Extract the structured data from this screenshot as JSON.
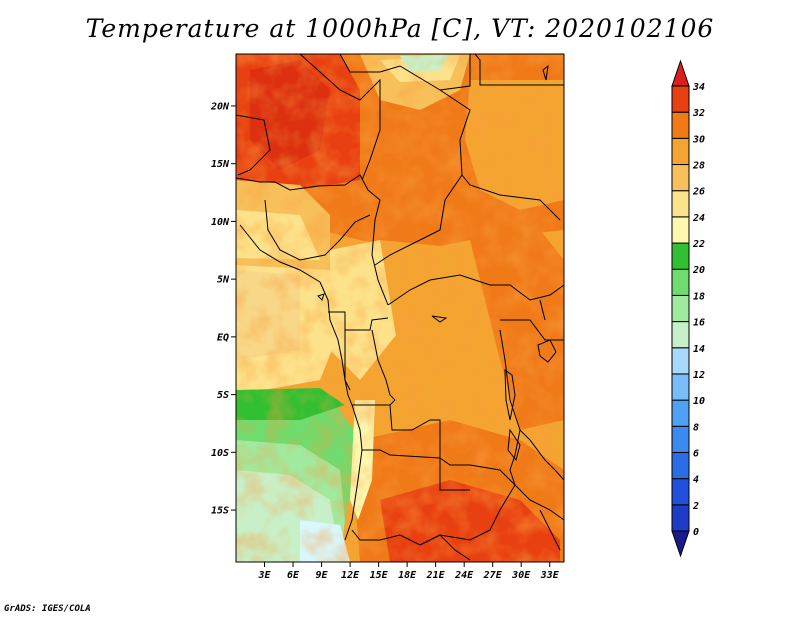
{
  "title": "Temperature at 1000hPa [C], VT: 2020102106",
  "credit": "GrADS: IGES/COLA",
  "map": {
    "lat_range": [
      -19.5,
      24.5
    ],
    "lon_range": [
      0,
      34.5
    ],
    "lat_ticks": [
      {
        "value": 20,
        "label": "20N"
      },
      {
        "value": 15,
        "label": "15N"
      },
      {
        "value": 10,
        "label": "10N"
      },
      {
        "value": 5,
        "label": "5N"
      },
      {
        "value": 0,
        "label": "EQ"
      },
      {
        "value": -5,
        "label": "5S"
      },
      {
        "value": -10,
        "label": "10S"
      },
      {
        "value": -15,
        "label": "15S"
      }
    ],
    "lon_ticks": [
      {
        "value": 3,
        "label": "3E"
      },
      {
        "value": 6,
        "label": "6E"
      },
      {
        "value": 9,
        "label": "9E"
      },
      {
        "value": 12,
        "label": "12E"
      },
      {
        "value": 15,
        "label": "15E"
      },
      {
        "value": 18,
        "label": "18E"
      },
      {
        "value": 21,
        "label": "21E"
      },
      {
        "value": 24,
        "label": "24E"
      },
      {
        "value": 27,
        "label": "27E"
      },
      {
        "value": 30,
        "label": "30E"
      },
      {
        "value": 33,
        "label": "33E"
      }
    ]
  },
  "colorbar": {
    "levels": [
      "0",
      "2",
      "4",
      "6",
      "8",
      "10",
      "12",
      "14",
      "16",
      "18",
      "20",
      "22",
      "24",
      "26",
      "28",
      "30",
      "32",
      "34"
    ],
    "colors": [
      "#1a1a8c",
      "#1e3cc8",
      "#2050dc",
      "#2a6ee6",
      "#3a8af0",
      "#50a0f4",
      "#78bcf8",
      "#a8d8fc",
      "#c8f0c8",
      "#a0eaa0",
      "#6edc6e",
      "#32c032",
      "#fcf8b0",
      "#fce28a",
      "#f8c05a",
      "#f4a430",
      "#f07a18",
      "#e84010",
      "#dc1e1e"
    ]
  }
}
